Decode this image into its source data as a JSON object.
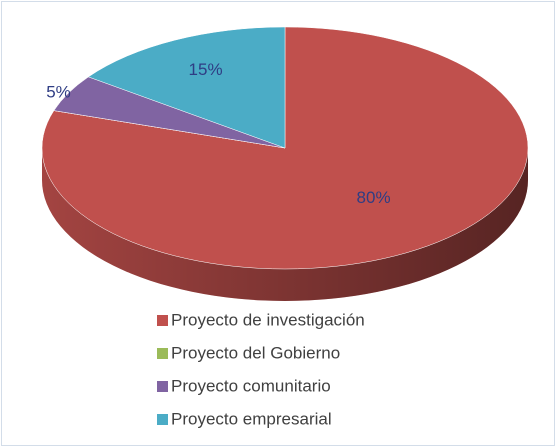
{
  "chart_data": {
    "type": "pie",
    "categories": [
      "Proyecto de investigación",
      "Proyecto del Gobierno",
      "Proyecto comunitario",
      "Proyecto empresarial"
    ],
    "values": [
      80,
      0,
      5,
      15
    ],
    "value_labels": [
      "80%",
      null,
      "5%",
      "15%"
    ],
    "colors": [
      "#c0504d",
      "#9bbb59",
      "#8064a2",
      "#4bacc6"
    ],
    "legend": "bottom"
  }
}
